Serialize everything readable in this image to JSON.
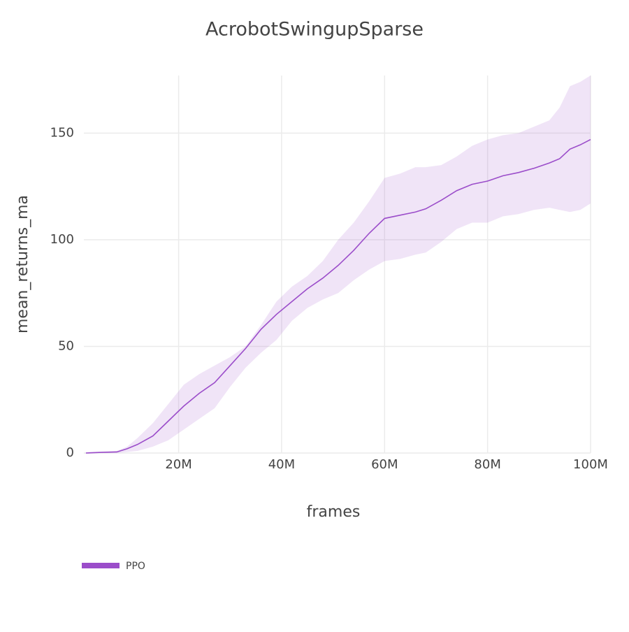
{
  "chart_data": {
    "type": "line",
    "title": "AcrobotSwingupSparse",
    "x_label": "frames",
    "y_label": "mean_returns_ma",
    "x": [
      2000000,
      5000000,
      8000000,
      10000000,
      12000000,
      15000000,
      18000000,
      21000000,
      24000000,
      27000000,
      30000000,
      33000000,
      36000000,
      39000000,
      42000000,
      45000000,
      48000000,
      51000000,
      54000000,
      57000000,
      60000000,
      63000000,
      66000000,
      68000000,
      71000000,
      74000000,
      77000000,
      80000000,
      83000000,
      86000000,
      89000000,
      92000000,
      94000000,
      96000000,
      98000000,
      100000000
    ],
    "series": [
      {
        "name": "PPO",
        "color": "#9b4dca",
        "band_color": "rgba(155,77,202,0.15)",
        "values": [
          0,
          0.3,
          0.5,
          2,
          4,
          8,
          15,
          22,
          28,
          33,
          41,
          49,
          58,
          65,
          71,
          77,
          82,
          88,
          95,
          103,
          110,
          111.5,
          113,
          114.5,
          118.5,
          123,
          126,
          127.5,
          130,
          131.5,
          133.5,
          136,
          138,
          142.5,
          144.5,
          147
        ],
        "upper": [
          0.5,
          0.7,
          1,
          3,
          7,
          14,
          23,
          32,
          37,
          41,
          45,
          50,
          60,
          71,
          78,
          83,
          90,
          100,
          108,
          118,
          129,
          131,
          134,
          134,
          135,
          139,
          144,
          147,
          149,
          150,
          153,
          156,
          162,
          172,
          174,
          177
        ],
        "lower": [
          0,
          0,
          0,
          0.5,
          1,
          3,
          6,
          11,
          16,
          21,
          31,
          40,
          47,
          53,
          62,
          68,
          72,
          75,
          81,
          86,
          90,
          91,
          93,
          94,
          99,
          105,
          108,
          108,
          111,
          112,
          114,
          115,
          114,
          113,
          114,
          117
        ]
      }
    ],
    "xlim": [
      1600000,
      100000000
    ],
    "ylim": [
      0,
      177
    ],
    "xticks": [
      {
        "value": 20000000,
        "label": "20M"
      },
      {
        "value": 40000000,
        "label": "40M"
      },
      {
        "value": 60000000,
        "label": "60M"
      },
      {
        "value": 80000000,
        "label": "80M"
      },
      {
        "value": 100000000,
        "label": "100M"
      }
    ],
    "yticks": [
      0,
      50,
      100,
      150
    ],
    "grid": true
  }
}
